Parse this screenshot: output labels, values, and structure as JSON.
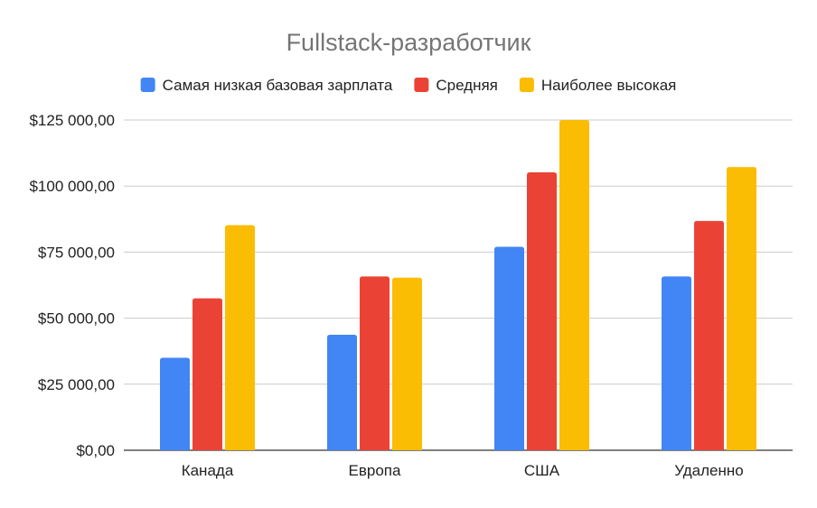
{
  "chart_data": {
    "type": "bar",
    "title": "Fullstack-разработчик",
    "xlabel": "",
    "ylabel": "",
    "categories": [
      "Канада",
      "Европа",
      "США",
      "Удаленно"
    ],
    "series": [
      {
        "name": "Самая низкая базовая зарплата",
        "color": "#4285F4",
        "values": [
          35000,
          43700,
          77000,
          65800
        ]
      },
      {
        "name": "Средняя",
        "color": "#EA4335",
        "values": [
          57500,
          65800,
          105200,
          86800
        ]
      },
      {
        "name": "Наиболее высокая",
        "color": "#FBBC04",
        "values": [
          85200,
          65300,
          125000,
          107200
        ]
      }
    ],
    "ylim": [
      0,
      125000
    ],
    "yticks": [
      0,
      25000,
      50000,
      75000,
      100000,
      125000
    ],
    "ytick_labels": [
      "$0,00",
      "$25 000,00",
      "$50 000,00",
      "$75 000,00",
      "$100 000,00",
      "$125 000,00"
    ],
    "grid": true,
    "legend_position": "top"
  }
}
